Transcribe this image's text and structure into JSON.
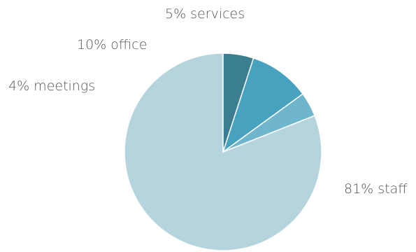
{
  "chart_data": {
    "type": "pie",
    "start_angle_deg": 0,
    "direction": "counterclockwise",
    "slices": [
      {
        "name": "staff",
        "value": 81,
        "label": "81% staff",
        "color": "#b5d4de"
      },
      {
        "name": "meetings",
        "value": 4,
        "label": "4% meetings",
        "color": "#6fb5cc"
      },
      {
        "name": "office",
        "value": 10,
        "label": "10% office",
        "color": "#46a2be"
      },
      {
        "name": "services",
        "value": 5,
        "label": "5% services",
        "color": "#3b7e92"
      }
    ]
  }
}
